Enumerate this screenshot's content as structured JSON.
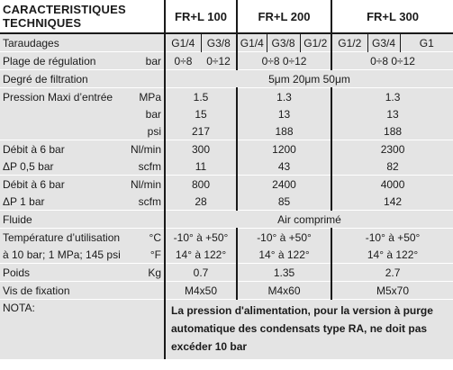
{
  "header": {
    "title_line1": "CARACTERISTIQUES",
    "title_line2": "TECHNIQUES",
    "col1": "FR+L 100",
    "col2": "FR+L 200",
    "col3": "FR+L 300"
  },
  "rows": {
    "taraudages": {
      "label": "Taraudages",
      "c1a": "G1/4",
      "c1b": "G3/8",
      "c2a": "G1/4",
      "c2b": "G3/8",
      "c2c": "G1/2",
      "c3a": "G1/2",
      "c3b": "G3/4",
      "c3c": "G1"
    },
    "plage": {
      "label": "Plage de régulation",
      "unit": "bar",
      "c1a": "0÷8",
      "c1b": "0÷12",
      "c2": "0÷8 0÷12",
      "c3": "0÷8 0÷12"
    },
    "filtration": {
      "label": "Degré de filtration",
      "value": "5μm  20μm  50μm"
    },
    "pression_mpa": {
      "label": "Pression Maxi d’entrée",
      "unit": "MPa",
      "c1": "1.5",
      "c2": "1.3",
      "c3": "1.3"
    },
    "pression_bar": {
      "unit": "bar",
      "c1": "15",
      "c2": "13",
      "c3": "13"
    },
    "pression_psi": {
      "unit": "psi",
      "c1": "217",
      "c2": "188",
      "c3": "188"
    },
    "debit1": {
      "label": "Débit à 6 bar",
      "unit": "Nl/min",
      "c1": "300",
      "c2": "1200",
      "c3": "2300"
    },
    "dp05": {
      "label": "ΔP 0,5 bar",
      "unit": "scfm",
      "c1": "11",
      "c2": "43",
      "c3": "82"
    },
    "debit2": {
      "label": "Débit à 6 bar",
      "unit": "Nl/min",
      "c1": "800",
      "c2": "2400",
      "c3": "4000"
    },
    "dp1": {
      "label": "ΔP 1 bar",
      "unit": "scfm",
      "c1": "28",
      "c2": "85",
      "c3": "142"
    },
    "fluide": {
      "label": "Fluide",
      "value": "Air comprimé"
    },
    "temp_c": {
      "label": "Température d’utilisation",
      "unit": "°C",
      "c1": "-10° à +50°",
      "c2": "-10° à +50°",
      "c3": "-10° à +50°"
    },
    "temp_f": {
      "label": "à 10 bar; 1 MPa; 145 psi",
      "unit": "°F",
      "c1": "14° à 122°",
      "c2": "14° à 122°",
      "c3": "14° à 122°"
    },
    "poids": {
      "label": "Poids",
      "unit": "Kg",
      "c1": "0.7",
      "c2": "1.35",
      "c3": "2.7"
    },
    "vis": {
      "label": "Vis de fixation",
      "c1": "M4x50",
      "c2": "M4x60",
      "c3": "M5x70"
    },
    "nota": {
      "label": "NOTA:",
      "text": "La pression d'alimentation, pour la version à purge automatique des condensats type RA, ne doit pas excéder 10 bar"
    }
  }
}
